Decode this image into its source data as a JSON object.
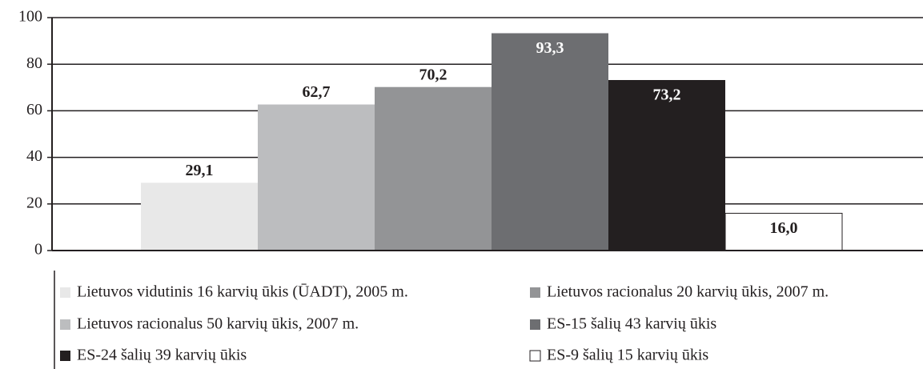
{
  "chart_data": {
    "type": "bar",
    "series": [
      {
        "name": "Lietuvos vidutinis 16 karvių ūkis (ŪADT), 2005 m.",
        "color": "#e8e8e8",
        "values": [
          29.1
        ],
        "value_labels": [
          "29,1"
        ]
      },
      {
        "name": "Lietuvos racionalus 50 karvių ūkis, 2007 m.",
        "color": "#bcbdbf",
        "values": [
          62.7
        ],
        "value_labels": [
          "62,7"
        ]
      },
      {
        "name": "Lietuvos racionalus 20 karvių ūkis, 2007 m.",
        "color": "#939496",
        "values": [
          70.2
        ],
        "value_labels": [
          "70,2"
        ]
      },
      {
        "name": "ES-15 šalių 43 karvių ūkis",
        "color": "#6d6e71",
        "values": [
          93.3
        ],
        "value_labels": [
          "93,3"
        ]
      },
      {
        "name": "ES-24 šalių 39 karvių ūkis",
        "color": "#231f20",
        "values": [
          73.2
        ],
        "value_labels": [
          "73,2"
        ]
      },
      {
        "name": "ES-9 šalių 15 karvių ūkis",
        "color": "#ffffff",
        "values": [
          16.0
        ],
        "value_labels": [
          "16,0"
        ]
      }
    ],
    "ylim": [
      0,
      100
    ],
    "yticks": [
      0,
      20,
      40,
      60,
      80,
      100
    ],
    "grid": true
  }
}
